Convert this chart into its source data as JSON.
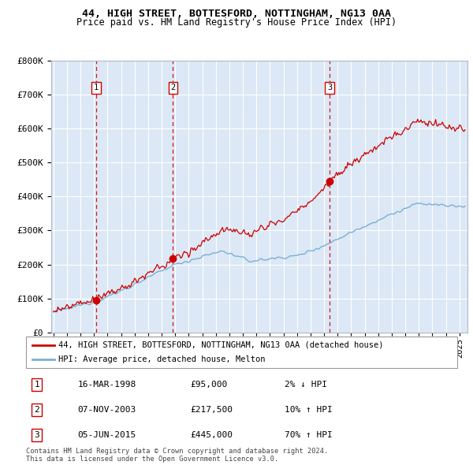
{
  "title": "44, HIGH STREET, BOTTESFORD, NOTTINGHAM, NG13 0AA",
  "subtitle": "Price paid vs. HM Land Registry's House Price Index (HPI)",
  "line1_label": "44, HIGH STREET, BOTTESFORD, NOTTINGHAM, NG13 0AA (detached house)",
  "line2_label": "HPI: Average price, detached house, Melton",
  "sale_prices": [
    95000,
    217500,
    445000
  ],
  "sale_labels": [
    "1",
    "2",
    "3"
  ],
  "table_rows": [
    [
      "1",
      "16-MAR-1998",
      "£95,000",
      "2% ↓ HPI"
    ],
    [
      "2",
      "07-NOV-2003",
      "£217,500",
      "10% ↑ HPI"
    ],
    [
      "3",
      "05-JUN-2015",
      "£445,000",
      "70% ↑ HPI"
    ]
  ],
  "copyright": "Contains HM Land Registry data © Crown copyright and database right 2024.\nThis data is licensed under the Open Government Licence v3.0.",
  "ylim": [
    0,
    800000
  ],
  "yticks": [
    0,
    100000,
    200000,
    300000,
    400000,
    500000,
    600000,
    700000,
    800000
  ],
  "ytick_labels": [
    "£0",
    "£100K",
    "£200K",
    "£300K",
    "£400K",
    "£500K",
    "£600K",
    "£700K",
    "£800K"
  ],
  "line1_color": "#cc0000",
  "line2_color": "#7bafd4",
  "dot_color": "#cc0000",
  "vline_color": "#cc0000",
  "bg_color": "#dce8f5",
  "grid_color": "#ffffff",
  "start_year": 1995,
  "end_year": 2025
}
